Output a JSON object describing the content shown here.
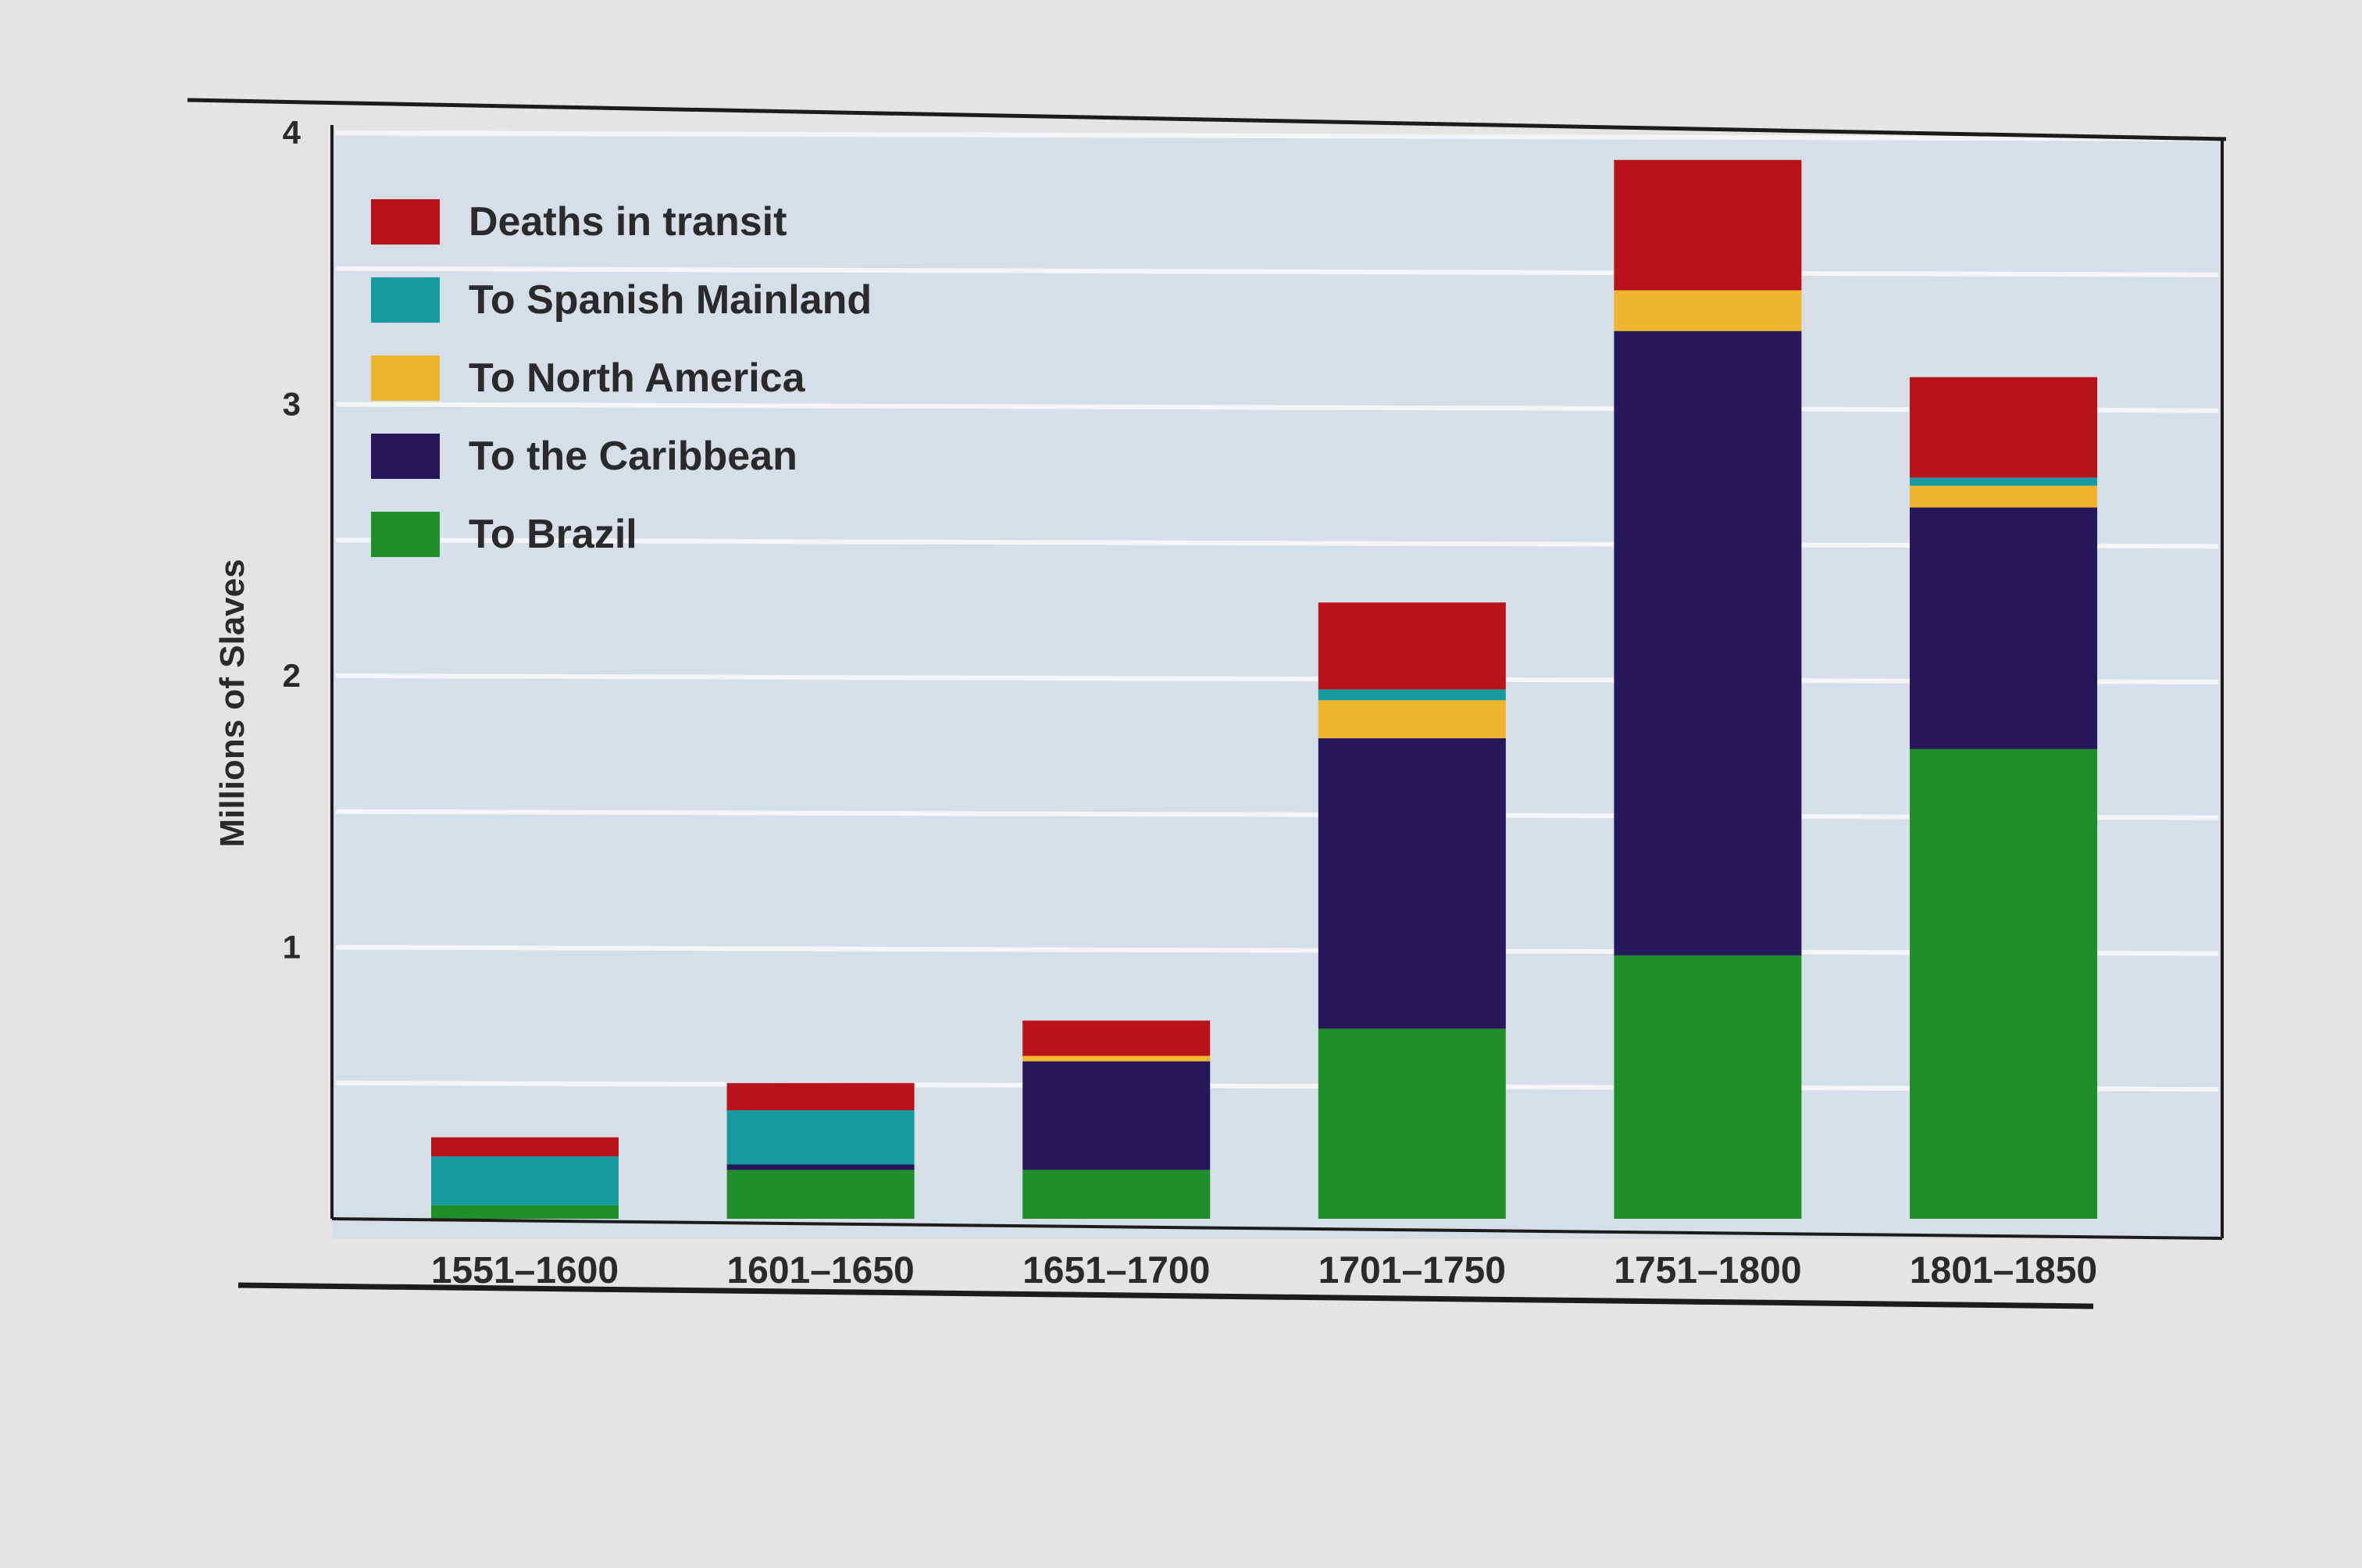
{
  "colors": {
    "page_background": "#e6e4e2",
    "plot_background": "#d6dfe7",
    "gridline": "#f3f5f8",
    "axis_line": "#1c1c1c",
    "text": "#2a2a2a"
  },
  "chart_data": {
    "type": "bar",
    "stacked": true,
    "title": "",
    "xlabel": "",
    "ylabel": "Millions of Slaves",
    "ylim": [
      0,
      4
    ],
    "yticks": [
      "1",
      "2",
      "3",
      "4"
    ],
    "grid": true,
    "legend_position": "top-left",
    "categories": [
      "1551–1600",
      "1601–1650",
      "1651–1700",
      "1701–1750",
      "1751–1800",
      "1801–1850"
    ],
    "series": [
      {
        "name": "To Brazil",
        "color": "#1f8f2a",
        "values": [
          0.05,
          0.18,
          0.18,
          0.7,
          0.97,
          1.73
        ]
      },
      {
        "name": "To the Caribbean",
        "color": "#25175a",
        "values": [
          0.0,
          0.02,
          0.4,
          1.07,
          2.3,
          0.89
        ]
      },
      {
        "name": "To North America",
        "color": "#efb62d",
        "values": [
          0.0,
          0.0,
          0.02,
          0.14,
          0.15,
          0.08
        ]
      },
      {
        "name": "To Spanish Mainland",
        "color": "#169aa0",
        "values": [
          0.18,
          0.2,
          0.0,
          0.04,
          0.0,
          0.03
        ]
      },
      {
        "name": "Deaths in transit",
        "color": "#b8121b",
        "values": [
          0.07,
          0.1,
          0.13,
          0.32,
          0.48,
          0.37
        ]
      }
    ],
    "legend_order": [
      "Deaths in transit",
      "To Spanish Mainland",
      "To North America",
      "To the Caribbean",
      "To Brazil"
    ]
  }
}
